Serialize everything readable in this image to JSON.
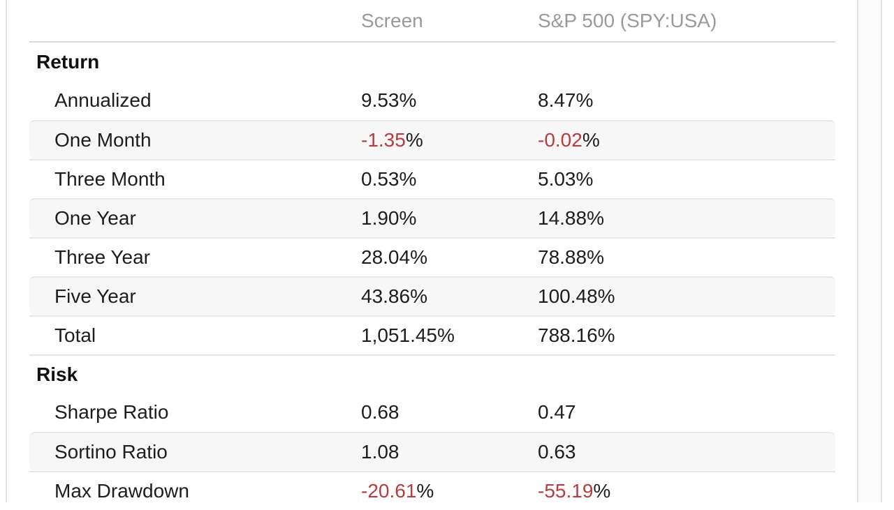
{
  "colors": {
    "negative_value": "#b93c3c",
    "column_header_text": "#9a9a9a",
    "stripe_background": "#f7f7f7",
    "divider": "#e7e7e7"
  },
  "table": {
    "columns": [
      "",
      "Screen",
      "S&P 500 (SPY:USA)"
    ],
    "sections": [
      {
        "title": "Return",
        "rows": [
          {
            "label": "Annualized",
            "screen": {
              "num": "9.53",
              "suffix": "%",
              "neg": false
            },
            "benchmark": {
              "num": "8.47",
              "suffix": "%",
              "neg": false
            }
          },
          {
            "label": "One Month",
            "screen": {
              "num": "-1.35",
              "suffix": "%",
              "neg": true
            },
            "benchmark": {
              "num": "-0.02",
              "suffix": "%",
              "neg": true
            }
          },
          {
            "label": "Three Month",
            "screen": {
              "num": "0.53",
              "suffix": "%",
              "neg": false
            },
            "benchmark": {
              "num": "5.03",
              "suffix": "%",
              "neg": false
            }
          },
          {
            "label": "One Year",
            "screen": {
              "num": "1.90",
              "suffix": "%",
              "neg": false
            },
            "benchmark": {
              "num": "14.88",
              "suffix": "%",
              "neg": false
            }
          },
          {
            "label": "Three Year",
            "screen": {
              "num": "28.04",
              "suffix": "%",
              "neg": false
            },
            "benchmark": {
              "num": "78.88",
              "suffix": "%",
              "neg": false
            }
          },
          {
            "label": "Five Year",
            "screen": {
              "num": "43.86",
              "suffix": "%",
              "neg": false
            },
            "benchmark": {
              "num": "100.48",
              "suffix": "%",
              "neg": false
            }
          },
          {
            "label": "Total",
            "screen": {
              "num": "1,051.45",
              "suffix": "%",
              "neg": false
            },
            "benchmark": {
              "num": "788.16",
              "suffix": "%",
              "neg": false
            }
          }
        ]
      },
      {
        "title": "Risk",
        "rows": [
          {
            "label": "Sharpe Ratio",
            "screen": {
              "num": "0.68",
              "suffix": "",
              "neg": false
            },
            "benchmark": {
              "num": "0.47",
              "suffix": "",
              "neg": false
            }
          },
          {
            "label": "Sortino Ratio",
            "screen": {
              "num": "1.08",
              "suffix": "",
              "neg": false
            },
            "benchmark": {
              "num": "0.63",
              "suffix": "",
              "neg": false
            }
          },
          {
            "label": "Max Drawdown",
            "screen": {
              "num": "-20.61",
              "suffix": "%",
              "neg": true
            },
            "benchmark": {
              "num": "-55.19",
              "suffix": "%",
              "neg": true
            }
          }
        ]
      }
    ]
  }
}
